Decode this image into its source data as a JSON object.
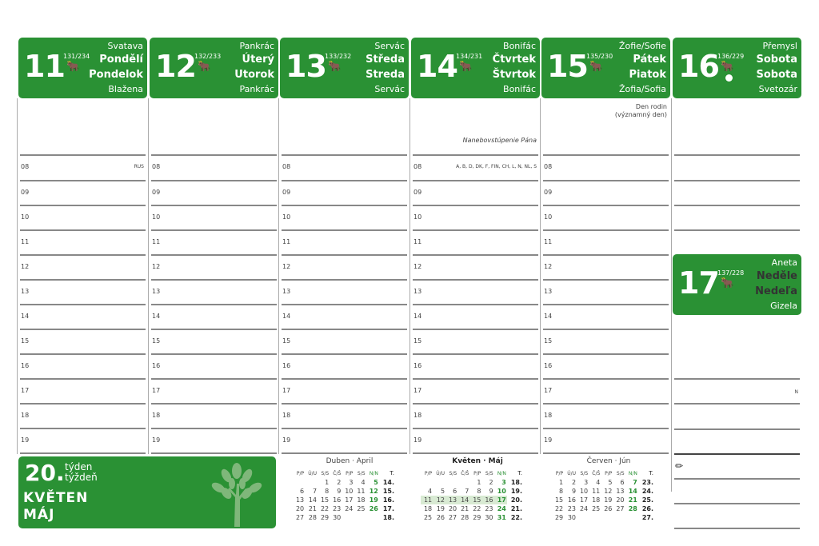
{
  "colors": {
    "accent": "#2a9134",
    "week_highlight": "#d8ead3"
  },
  "days": [
    {
      "num": "11",
      "frac": "131/234",
      "name_top": "Svatava",
      "day_cz": "Pondělí",
      "day_sk": "Pondelok",
      "name_bottom": "Blažena",
      "note": "",
      "hour_note": "RUS"
    },
    {
      "num": "12",
      "frac": "132/233",
      "name_top": "Pankrác",
      "day_cz": "Úterý",
      "day_sk": "Utorok",
      "name_bottom": "Pankrác",
      "note": "",
      "hour_note": ""
    },
    {
      "num": "13",
      "frac": "133/232",
      "name_top": "Servác",
      "day_cz": "Středa",
      "day_sk": "Streda",
      "name_bottom": "Servác",
      "note": "",
      "hour_note": ""
    },
    {
      "num": "14",
      "frac": "134/231",
      "name_top": "Bonifác",
      "day_cz": "Čtvrtek",
      "day_sk": "Štvrtok",
      "name_bottom": "Bonifác",
      "note": "Nanebovstúpenie Pána",
      "hour_note": "A, B, D, DK, F, FIN, CH, L, N, NL, S"
    },
    {
      "num": "15",
      "frac": "135/230",
      "name_top": "Žofie/Sofie",
      "day_cz": "Pátek",
      "day_sk": "Piatok",
      "name_bottom": "Žofia/Sofia",
      "note": "Den rodin\n(významný den)",
      "hour_note": ""
    },
    {
      "num": "16",
      "frac": "136/229",
      "name_top": "Přemysl",
      "day_cz": "Sobota",
      "day_sk": "Sobota",
      "name_bottom": "Svetozár",
      "note": "",
      "hour_note": ""
    },
    {
      "num": "17",
      "frac": "137/228",
      "name_top": "Aneta",
      "day_cz": "Neděle",
      "day_sk": "Nedeľa",
      "name_bottom": "Gizela",
      "note": "",
      "hour_note": "N"
    }
  ],
  "hours": [
    "08",
    "09",
    "10",
    "11",
    "12",
    "13",
    "14",
    "15",
    "16",
    "17",
    "18",
    "19"
  ],
  "week": {
    "number": "20.",
    "label_cz": "týden",
    "label_sk": "týždeň",
    "month_cz": "KVĚTEN",
    "month_sk": "MÁJ"
  },
  "weekday_headers": [
    "P/P",
    "Ú/U",
    "S/S",
    "Č/Š",
    "P/P",
    "S/S",
    "N/N",
    "T."
  ],
  "calendars": [
    {
      "title": "Duben · April",
      "current": false,
      "rows": [
        [
          "",
          "",
          "1",
          "2",
          "3",
          "4",
          "5",
          "14."
        ],
        [
          "6",
          "7",
          "8",
          "9",
          "10",
          "11",
          "12",
          "15."
        ],
        [
          "13",
          "14",
          "15",
          "16",
          "17",
          "18",
          "19",
          "16."
        ],
        [
          "20",
          "21",
          "22",
          "23",
          "24",
          "25",
          "26",
          "17."
        ],
        [
          "27",
          "28",
          "29",
          "30",
          "",
          "",
          "",
          "18."
        ]
      ]
    },
    {
      "title": "Květen · Máj",
      "current": true,
      "highlight_row": 2,
      "rows": [
        [
          "",
          "",
          "",
          "",
          "1",
          "2",
          "3",
          "18."
        ],
        [
          "4",
          "5",
          "6",
          "7",
          "8",
          "9",
          "10",
          "19."
        ],
        [
          "11",
          "12",
          "13",
          "14",
          "15",
          "16",
          "17",
          "20."
        ],
        [
          "18",
          "19",
          "20",
          "21",
          "22",
          "23",
          "24",
          "21."
        ],
        [
          "25",
          "26",
          "27",
          "28",
          "29",
          "30",
          "31",
          "22."
        ]
      ]
    },
    {
      "title": "Červen · Jún",
      "current": false,
      "rows": [
        [
          "1",
          "2",
          "3",
          "4",
          "5",
          "6",
          "7",
          "23."
        ],
        [
          "8",
          "9",
          "10",
          "11",
          "12",
          "13",
          "14",
          "24."
        ],
        [
          "15",
          "16",
          "17",
          "18",
          "19",
          "20",
          "21",
          "25."
        ],
        [
          "22",
          "23",
          "24",
          "25",
          "26",
          "27",
          "28",
          "26."
        ],
        [
          "29",
          "30",
          "",
          "",
          "",
          "",
          "",
          "27."
        ]
      ]
    }
  ],
  "icons": {
    "day": "bull-icon",
    "full_moon": "full-moon-icon",
    "notes": "pencil-icon",
    "week": "tree-icon"
  }
}
